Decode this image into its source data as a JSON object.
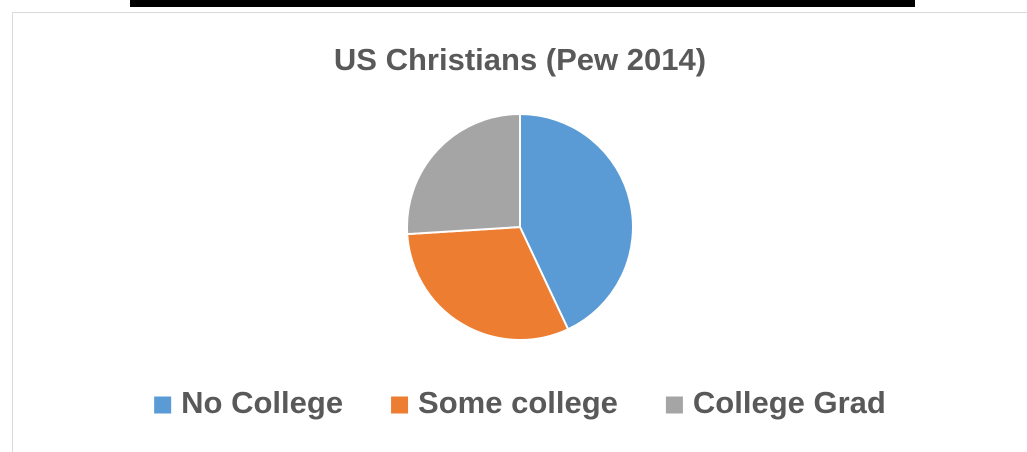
{
  "chart_data": {
    "type": "pie",
    "title": "US Christians (Pew 2014)",
    "categories": [
      "No College",
      "Some college",
      "College Grad"
    ],
    "values": [
      43,
      31,
      26
    ],
    "colors": [
      "#5b9bd5",
      "#ed7d31",
      "#a5a5a5"
    ],
    "legend": "bottom"
  }
}
